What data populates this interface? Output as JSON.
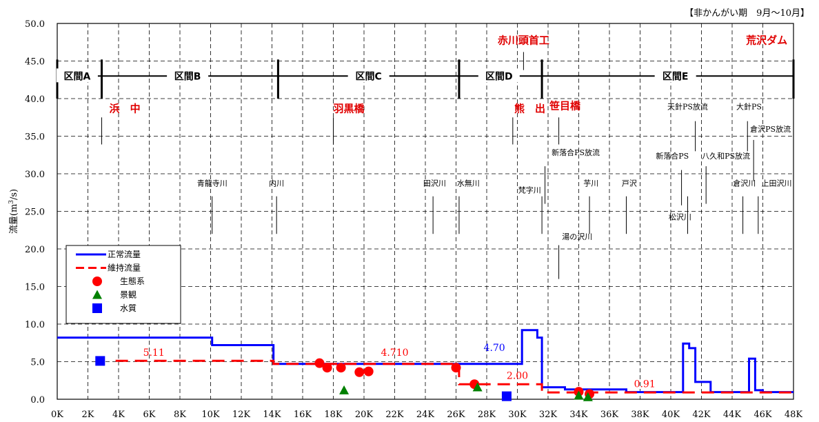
{
  "period_note": "【非かんがい期　9月～10月】",
  "chart_data": {
    "type": "line",
    "ylabel": "流量(m3/s)",
    "ylabel_parts": [
      "流量(m",
      "3",
      "/s)"
    ],
    "xlim": [
      0,
      48
    ],
    "ylim": [
      0,
      50
    ],
    "x_ticks": [
      "0K",
      "2K",
      "4K",
      "6K",
      "8K",
      "10K",
      "12K",
      "14K",
      "16K",
      "18K",
      "20K",
      "22K",
      "24K",
      "26K",
      "28K",
      "30K",
      "32K",
      "34K",
      "36K",
      "38K",
      "40K",
      "42K",
      "44K",
      "46K",
      "48K"
    ],
    "y_ticks": [
      "0.0",
      "5.0",
      "10.0",
      "15.0",
      "20.0",
      "25.0",
      "30.0",
      "35.0",
      "40.0",
      "45.0",
      "50.0"
    ],
    "grid": true,
    "legend_position": "bottom-left",
    "series": [
      {
        "name": "正常流量",
        "color": "#0000ff",
        "style": "solid",
        "points": [
          [
            0,
            8.2
          ],
          [
            10.1,
            8.2
          ],
          [
            10.1,
            7.2
          ],
          [
            14.1,
            7.2
          ],
          [
            14.1,
            4.7
          ],
          [
            30.3,
            4.7
          ],
          [
            30.3,
            9.2
          ],
          [
            31.3,
            9.2
          ],
          [
            31.3,
            8.2
          ],
          [
            31.6,
            8.2
          ],
          [
            31.6,
            1.6
          ],
          [
            33.1,
            1.6
          ],
          [
            33.1,
            1.3
          ],
          [
            37.1,
            1.3
          ],
          [
            37.1,
            0.95
          ],
          [
            40.8,
            0.95
          ],
          [
            40.8,
            7.4
          ],
          [
            41.2,
            7.4
          ],
          [
            41.2,
            6.8
          ],
          [
            41.6,
            6.8
          ],
          [
            41.6,
            2.3
          ],
          [
            42.6,
            2.3
          ],
          [
            42.6,
            0.95
          ],
          [
            45.1,
            0.95
          ],
          [
            45.1,
            5.4
          ],
          [
            45.5,
            5.4
          ],
          [
            45.5,
            1.2
          ],
          [
            46.0,
            1.2
          ],
          [
            46.0,
            0.95
          ],
          [
            48,
            0.95
          ]
        ]
      },
      {
        "name": "維持流量",
        "color": "#ff0000",
        "style": "dashed",
        "points": [
          [
            3.8,
            5.11
          ],
          [
            14.1,
            5.11
          ],
          [
            14.1,
            4.71
          ],
          [
            26.2,
            4.71
          ],
          [
            26.2,
            2.0
          ],
          [
            31.6,
            2.0
          ],
          [
            31.6,
            0.91
          ],
          [
            48,
            0.91
          ]
        ]
      }
    ],
    "markers": [
      {
        "name": "生態系",
        "shape": "circle",
        "color": "#ff0000",
        "points": [
          [
            17.1,
            4.8
          ],
          [
            17.6,
            4.2
          ],
          [
            18.5,
            4.2
          ],
          [
            19.7,
            3.6
          ],
          [
            20.3,
            3.7
          ],
          [
            26.0,
            4.2
          ],
          [
            27.2,
            2.0
          ],
          [
            34.0,
            1.0
          ],
          [
            34.7,
            0.7
          ]
        ]
      },
      {
        "name": "景観",
        "shape": "triangle",
        "color": "#008000",
        "points": [
          [
            18.7,
            1.2
          ],
          [
            27.4,
            1.6
          ],
          [
            34.0,
            0.5
          ],
          [
            34.6,
            0.3
          ]
        ]
      },
      {
        "name": "水質",
        "shape": "square",
        "color": "#0000ff",
        "points": [
          [
            2.8,
            5.1
          ],
          [
            29.3,
            0.4
          ]
        ]
      }
    ],
    "value_labels": [
      {
        "text": "5.11",
        "x": 6.3,
        "y": 5.8,
        "color": "#ff0000"
      },
      {
        "text": "4.710",
        "x": 22.0,
        "y": 5.8,
        "color": "#ff0000"
      },
      {
        "text": "4.70",
        "x": 28.5,
        "y": 6.4,
        "color": "#0000ff"
      },
      {
        "text": "2.00",
        "x": 30.0,
        "y": 2.7,
        "color": "#ff0000"
      },
      {
        "text": "0.91",
        "x": 38.3,
        "y": 1.6,
        "color": "#ff0000"
      }
    ],
    "sections": {
      "y": 43,
      "boundaries": [
        0,
        2.9,
        14.4,
        26.2,
        31.6,
        48
      ],
      "labels": [
        {
          "text": "区間A",
          "x": 1.3
        },
        {
          "text": "区間B",
          "x": 8.5
        },
        {
          "text": "区間C",
          "x": 20.3
        },
        {
          "text": "区間D",
          "x": 28.8
        },
        {
          "text": "区間E",
          "x": 40.3
        }
      ]
    },
    "places": [
      {
        "text": "浜　中",
        "x": 3.4,
        "y": 38.2,
        "anchor": "start",
        "line": [
          2.9,
          37.5,
          33.9
        ]
      },
      {
        "text": "羽黒橋",
        "x": 18.0,
        "y": 38.2,
        "anchor": "start",
        "line": [
          18.0,
          37.5,
          33.9
        ]
      },
      {
        "text": "熊　出",
        "x": 29.8,
        "y": 38.2,
        "anchor": "start",
        "line": [
          29.7,
          37.5,
          33.9
        ]
      },
      {
        "text": "笹目橋",
        "x": 33.1,
        "y": 38.6,
        "anchor": "middle",
        "line": [
          32.7,
          37.5,
          33.9
        ]
      },
      {
        "text": "赤川頭首工",
        "x": 30.4,
        "y": 47.3,
        "anchor": "middle",
        "line": [
          30.4,
          46.2,
          43.8
        ]
      },
      {
        "text": "荒沢ダム",
        "x": 47.6,
        "y": 47.3,
        "anchor": "end",
        "line": [
          48.0,
          46.2,
          43.8
        ]
      }
    ],
    "tributaries": [
      {
        "text": "青龍寺川",
        "x": 10.1,
        "y": 28.4,
        "line": [
          10.1,
          27.0,
          22.0
        ]
      },
      {
        "text": "内川",
        "x": 14.3,
        "y": 28.4,
        "line": [
          14.3,
          27.0,
          22.0
        ]
      },
      {
        "text": "田沢川",
        "x": 24.6,
        "y": 28.4,
        "line": [
          24.5,
          27.0,
          22.0
        ]
      },
      {
        "text": "水無川",
        "x": 26.8,
        "y": 28.4,
        "line": [
          26.2,
          27.0,
          22.0
        ]
      },
      {
        "text": "梵字川",
        "x": 30.8,
        "y": 27.5,
        "line": [
          31.6,
          27.0,
          22.0
        ]
      },
      {
        "text": "新落合PS放流",
        "x": 33.8,
        "y": 32.5,
        "line": [
          31.8,
          31.0,
          26.0
        ]
      },
      {
        "text": "芋川",
        "x": 34.8,
        "y": 28.4,
        "line": [
          34.7,
          27.0,
          22.0
        ]
      },
      {
        "text": "戸沢",
        "x": 37.3,
        "y": 28.4,
        "line": [
          37.1,
          27.0,
          22.0
        ]
      },
      {
        "text": "湯の沢川",
        "x": 33.9,
        "y": 21.3,
        "line": [
          32.7,
          20.5,
          16.0
        ]
      },
      {
        "text": "天針PS放流",
        "x": 41.1,
        "y": 38.6,
        "line": [
          41.6,
          37.0,
          33.0
        ]
      },
      {
        "text": "新落合PS",
        "x": 40.1,
        "y": 32.0,
        "line": [
          40.7,
          30.5,
          25.8
        ]
      },
      {
        "text": "八久和PS放流",
        "x": 43.6,
        "y": 32.0,
        "line": [
          42.3,
          31.0,
          26.0
        ]
      },
      {
        "text": "松沢川",
        "x": 40.6,
        "y": 23.9,
        "line": [
          41.1,
          27.0,
          22.0
        ]
      },
      {
        "text": "大針PS",
        "x": 45.1,
        "y": 38.6,
        "line": [
          45.0,
          37.0,
          33.0
        ]
      },
      {
        "text": "倉沢PS放流",
        "x": 46.5,
        "y": 35.6,
        "line": [
          45.4,
          34.5,
          29.0
        ]
      },
      {
        "text": "倉沢川",
        "x": 44.8,
        "y": 28.4,
        "line": [
          44.7,
          27.0,
          22.0
        ]
      },
      {
        "text": "上田沢川",
        "x": 46.9,
        "y": 28.4,
        "line": [
          45.7,
          27.0,
          22.0
        ]
      }
    ]
  }
}
